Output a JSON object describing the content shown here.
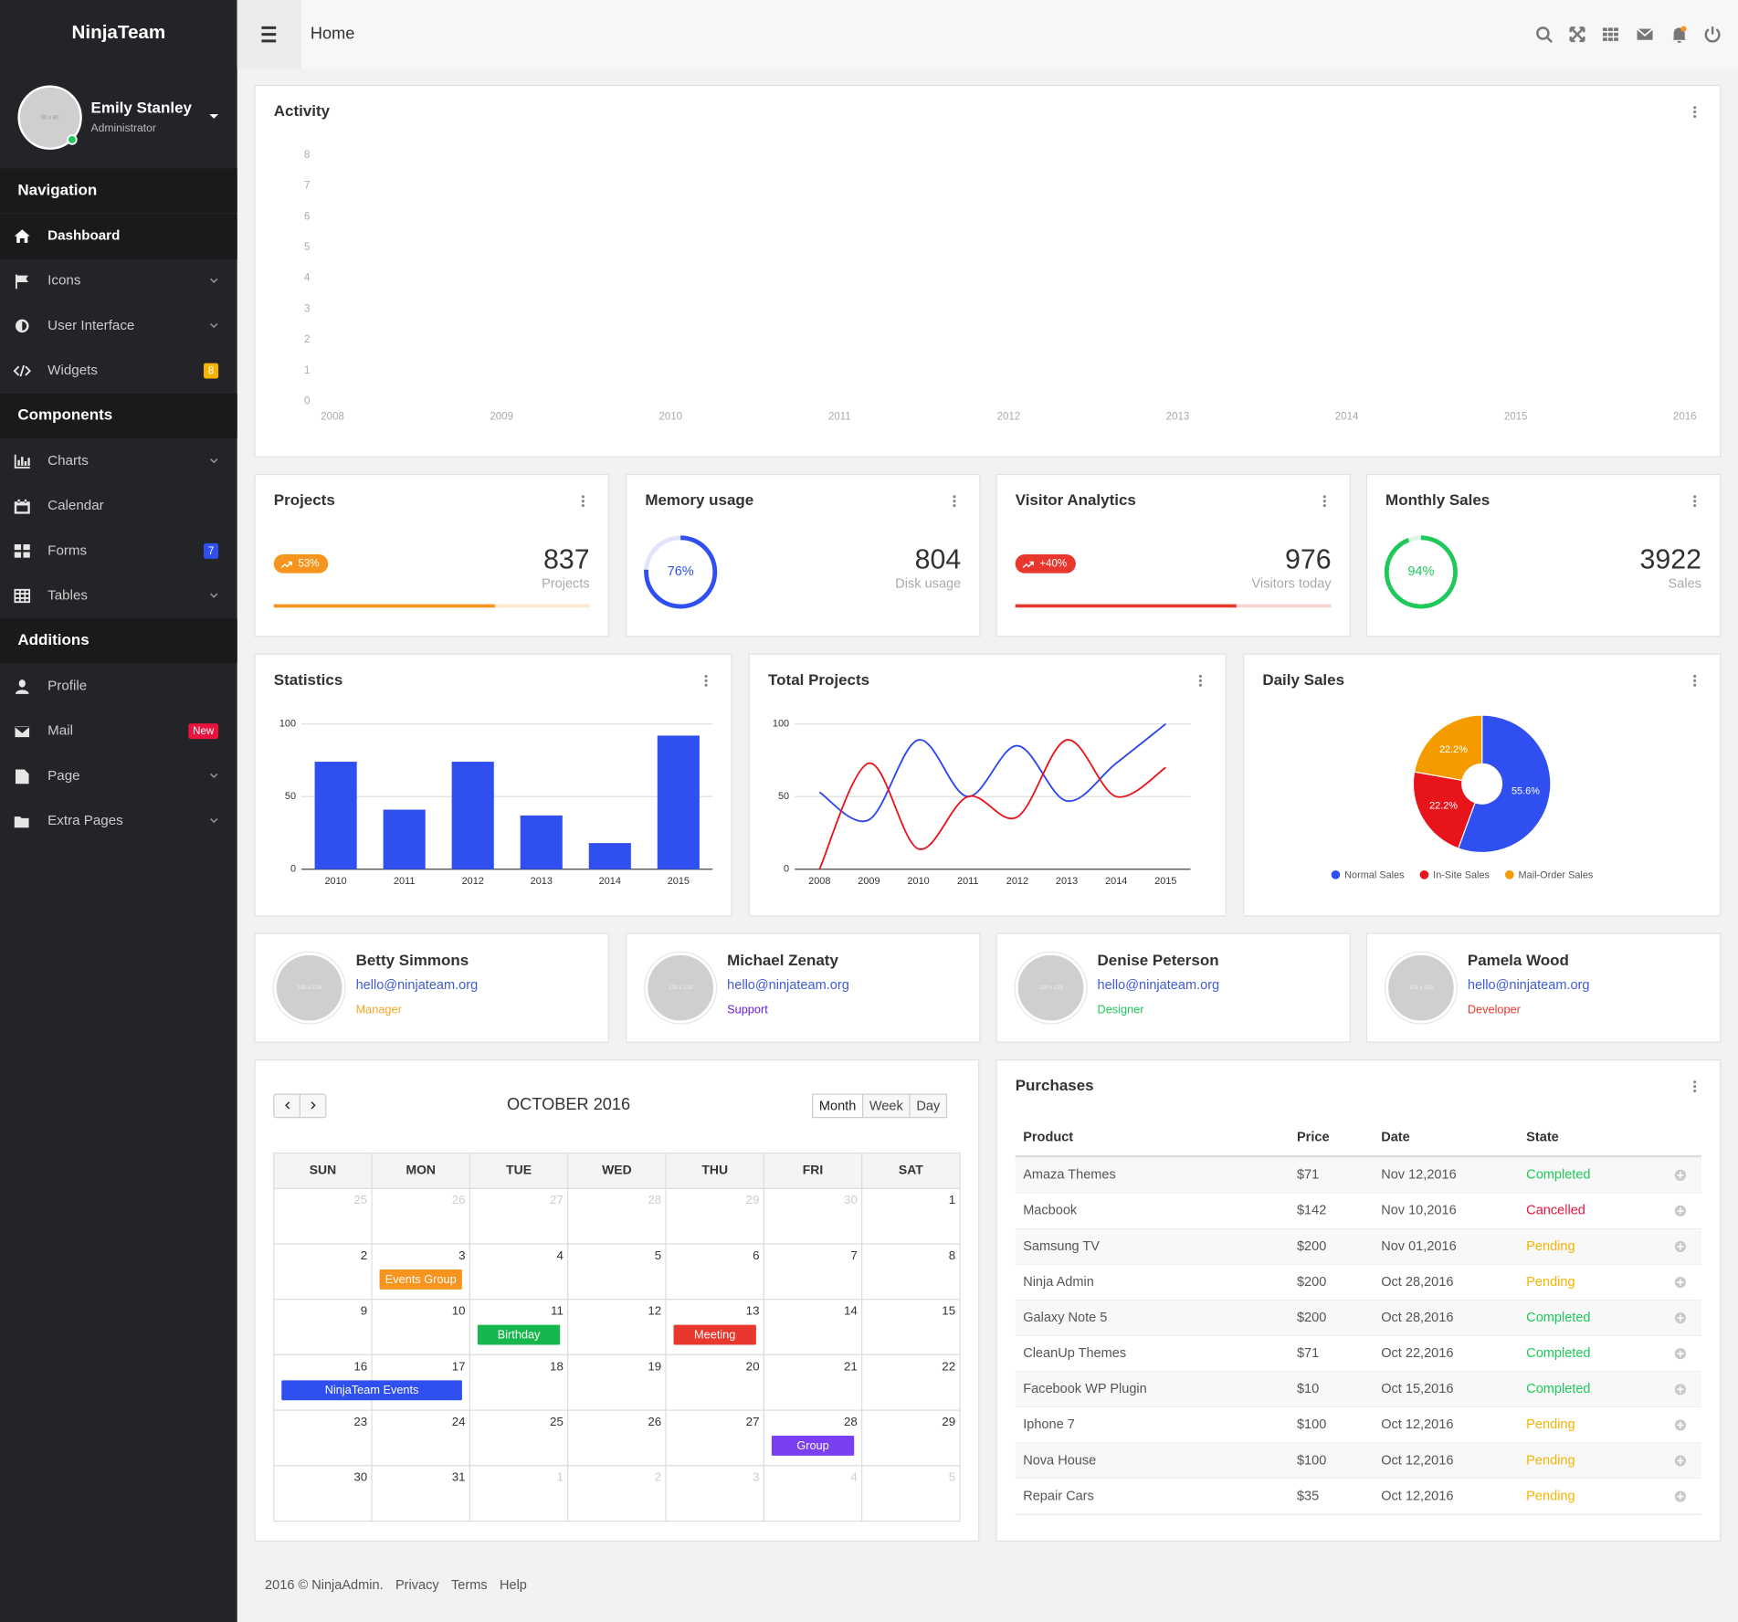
{
  "sidebar": {
    "brand": "NinjaTeam",
    "user": {
      "avatar": "80 x 80",
      "name": "Emily Stanley",
      "role": "Administrator",
      "online": true
    },
    "sections": [
      {
        "title": "Navigation",
        "items": [
          {
            "label": "Dashboard",
            "active": true
          },
          {
            "label": "Icons",
            "expandable": true
          },
          {
            "label": "User Interface",
            "expandable": true
          },
          {
            "label": "Widgets",
            "badge": "8",
            "badge_color": "#f5b400"
          }
        ]
      },
      {
        "title": "Components",
        "items": [
          {
            "label": "Charts",
            "expandable": true
          },
          {
            "label": "Calendar"
          },
          {
            "label": "Forms",
            "badge": "7",
            "badge_color": "#2f4ff0"
          },
          {
            "label": "Tables",
            "expandable": true
          }
        ]
      },
      {
        "title": "Additions",
        "items": [
          {
            "label": "Profile"
          },
          {
            "label": "Mail",
            "badge": "New",
            "badge_color": "#e8143c"
          },
          {
            "label": "Page",
            "expandable": true
          },
          {
            "label": "Extra Pages",
            "expandable": true
          }
        ]
      }
    ]
  },
  "topbar": {
    "title": "Home"
  },
  "charts": {
    "activity": {
      "type": "line",
      "title": "Activity",
      "xlim": [
        2008,
        2016
      ],
      "xticks": [
        2008,
        2009,
        2010,
        2011,
        2012,
        2013,
        2014,
        2015,
        2016
      ],
      "ylim": [
        0,
        8
      ],
      "yticks": [
        0,
        1,
        2,
        3,
        4,
        5,
        6,
        7,
        8
      ],
      "grid": false
    },
    "statistics": {
      "type": "bar",
      "title": "Statistics",
      "categories": [
        "2010",
        "2011",
        "2012",
        "2013",
        "2014",
        "2015"
      ],
      "values": [
        74,
        41,
        74,
        37,
        18,
        92
      ],
      "color": "#2f4ff0",
      "ylim": [
        0,
        100
      ],
      "yticks": [
        0,
        50,
        100
      ],
      "grid": true
    },
    "total_projects": {
      "type": "line",
      "title": "Total Projects",
      "categories": [
        "2008",
        "2009",
        "2010",
        "2011",
        "2012",
        "2013",
        "2014",
        "2015"
      ],
      "series": [
        {
          "color": "#2b45f0",
          "values": [
            53,
            34,
            89,
            50,
            85,
            47,
            73,
            100
          ]
        },
        {
          "color": "#e8141c",
          "values": [
            0,
            73,
            14,
            50,
            36,
            89,
            50,
            70
          ]
        }
      ],
      "ylim": [
        0,
        100
      ],
      "yticks": [
        0,
        50,
        100
      ],
      "grid": true
    },
    "daily_sales": {
      "type": "pie",
      "title": "Daily Sales",
      "categories": [
        "Normal Sales",
        "In-Site Sales",
        "Mail-Order Sales"
      ],
      "values": [
        55.6,
        22.2,
        22.2
      ],
      "value_labels": [
        "55.6%",
        "22.2%",
        "22.2%"
      ],
      "colors": [
        "#2f4ff0",
        "#e8141c",
        "#f59b00"
      ],
      "legend": "bottom"
    }
  },
  "stats": [
    {
      "title": "Projects",
      "badge": "53%",
      "value": 837,
      "caption": "Projects",
      "progress": 70,
      "color": "#f7941d"
    },
    {
      "title": "Memory usage",
      "ring": 76,
      "ring_label": "76%",
      "value": 804,
      "caption": "Disk usage",
      "color": "#2f4ff0"
    },
    {
      "title": "Visitor Analytics",
      "badge": "+40%",
      "value": 976,
      "caption": "Visitors today",
      "progress": 70,
      "color": "#e8372c"
    },
    {
      "title": "Monthly Sales",
      "ring": 94,
      "ring_label": "94%",
      "value": 3922,
      "caption": "Sales",
      "color": "#1ec95a"
    }
  ],
  "contacts": [
    {
      "avatar": "128 x 128",
      "name": "Betty Simmons",
      "email": "hello@ninjateam.org",
      "role": "Manager",
      "color": "#f5a623"
    },
    {
      "avatar": "128 x 128",
      "name": "Michael Zenaty",
      "email": "hello@ninjateam.org",
      "role": "Support",
      "color": "#6a1bd9"
    },
    {
      "avatar": "128 x 128",
      "name": "Denise Peterson",
      "email": "hello@ninjateam.org",
      "role": "Designer",
      "color": "#1ec95a"
    },
    {
      "avatar": "128 x 128",
      "name": "Pamela Wood",
      "email": "hello@ninjateam.org",
      "role": "Developer",
      "color": "#e8372c"
    }
  ],
  "calendar": {
    "title": "OCTOBER 2016",
    "views": [
      "Month",
      "Week",
      "Day"
    ],
    "active_view": "Month",
    "weekdays": [
      "SUN",
      "MON",
      "TUE",
      "WED",
      "THU",
      "FRI",
      "SAT"
    ],
    "weeks": [
      [
        25,
        26,
        27,
        28,
        29,
        30,
        1
      ],
      [
        2,
        3,
        4,
        5,
        6,
        7,
        8
      ],
      [
        9,
        10,
        11,
        12,
        13,
        14,
        15
      ],
      [
        16,
        17,
        18,
        19,
        20,
        21,
        22
      ],
      [
        23,
        24,
        25,
        26,
        27,
        28,
        29
      ],
      [
        30,
        31,
        1,
        2,
        3,
        4,
        5
      ]
    ],
    "events": [
      {
        "title": "Events Group",
        "date": 3,
        "days": 1,
        "color": "#f7941d"
      },
      {
        "title": "Birthday",
        "date": 11,
        "days": 1,
        "color": "#16b84e"
      },
      {
        "title": "Meeting",
        "date": 13,
        "days": 1,
        "color": "#e8372c"
      },
      {
        "title": "NinjaTeam Events",
        "date": 16,
        "days": 2,
        "color": "#2f4ff0"
      },
      {
        "title": "Group",
        "date": 28,
        "days": 1,
        "color": "#7b3ff2"
      }
    ]
  },
  "purchases": {
    "title": "Purchases",
    "columns": [
      "Product",
      "Price",
      "Date",
      "State"
    ],
    "rows": [
      [
        "Amaza Themes",
        "$71",
        "Nov 12,2016",
        "Completed"
      ],
      [
        "Macbook",
        "$142",
        "Nov 10,2016",
        "Cancelled"
      ],
      [
        "Samsung TV",
        "$200",
        "Nov 01,2016",
        "Pending"
      ],
      [
        "Ninja Admin",
        "$200",
        "Oct 28,2016",
        "Pending"
      ],
      [
        "Galaxy Note 5",
        "$200",
        "Oct 28,2016",
        "Completed"
      ],
      [
        "CleanUp Themes",
        "$71",
        "Oct 22,2016",
        "Completed"
      ],
      [
        "Facebook WP Plugin",
        "$10",
        "Oct 15,2016",
        "Completed"
      ],
      [
        "Iphone 7",
        "$100",
        "Oct 12,2016",
        "Pending"
      ],
      [
        "Nova House",
        "$100",
        "Oct 12,2016",
        "Pending"
      ],
      [
        "Repair Cars",
        "$35",
        "Oct 12,2016",
        "Pending"
      ]
    ],
    "state_colors": {
      "Completed": "#1ec95a",
      "Cancelled": "#e8143c",
      "Pending": "#f5b400"
    }
  },
  "footer": {
    "copyright": "2016 © NinjaAdmin.",
    "links": [
      "Privacy",
      "Terms",
      "Help"
    ]
  }
}
